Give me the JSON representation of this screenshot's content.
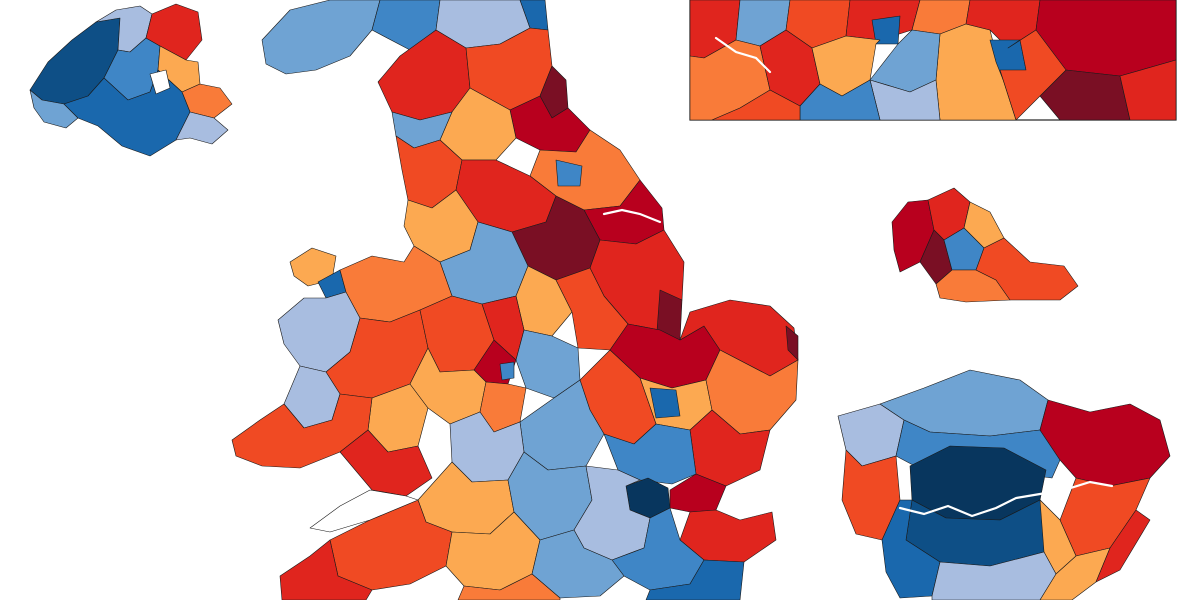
{
  "map": {
    "description_none": "",
    "palette": {
      "darkest_red": "#7a0f24",
      "dark_red": "#b8001e",
      "red": "#e0251e",
      "red_orange": "#f04a23",
      "orange": "#f97b39",
      "light_orange": "#fca951",
      "light_blue": "#a8bde0",
      "sky_blue": "#6fa3d3",
      "mid_blue": "#3f86c6",
      "blue": "#1a68ad",
      "dark_blue": "#0e4f86",
      "navy": "#08365e"
    },
    "regions": [
      {
        "id": "great-britain",
        "label": ""
      },
      {
        "id": "northern-ireland-inset",
        "label": ""
      },
      {
        "id": "north-west-inset",
        "label": ""
      },
      {
        "id": "west-midlands-inset",
        "label": ""
      },
      {
        "id": "london-inset",
        "label": ""
      }
    ]
  }
}
